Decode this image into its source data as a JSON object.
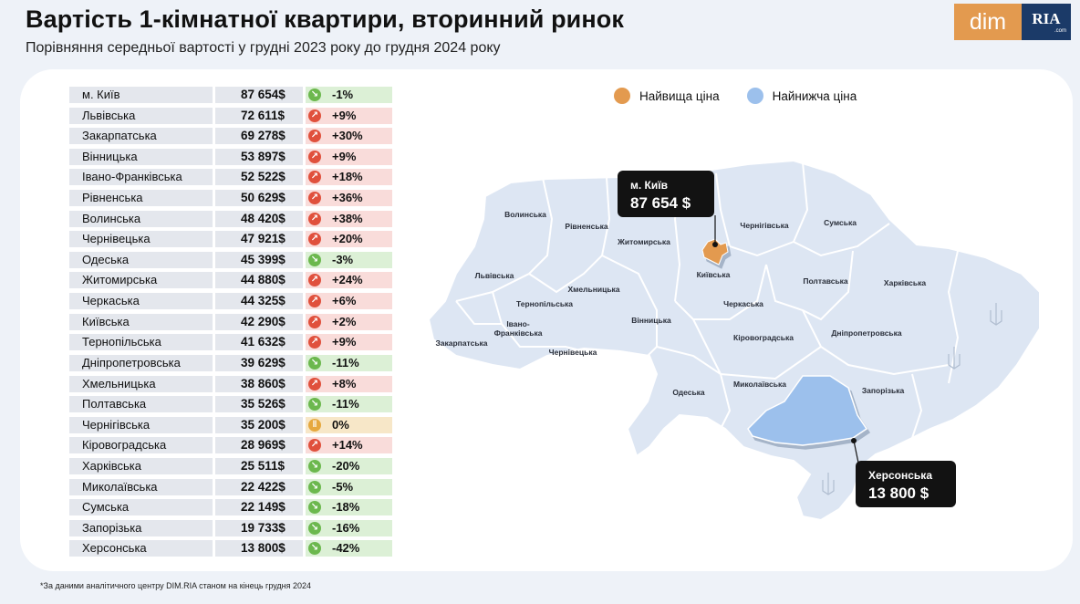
{
  "header": {
    "title": "Вартість 1-кімнатної квартири, вторинний ринок",
    "subtitle": "Порівняння середньої вартості у грудні 2023 року до грудня 2024 року"
  },
  "logo": {
    "dim": "dim",
    "ria": "RIA",
    "ria_suffix": ".com"
  },
  "legend": {
    "highest": {
      "label": "Найвища ціна",
      "color": "#e39a4f"
    },
    "lowest": {
      "label": "Найнижча ціна",
      "color": "#9cc0ec"
    }
  },
  "chart_data": {
    "type": "table",
    "columns": [
      "region",
      "value",
      "change"
    ],
    "rows": [
      {
        "region": "м. Київ",
        "value": "87 654$",
        "change": "-1%",
        "direction": "down"
      },
      {
        "region": "Львівська",
        "value": "72 611$",
        "change": "+9%",
        "direction": "up"
      },
      {
        "region": "Закарпатська",
        "value": "69 278$",
        "change": "+30%",
        "direction": "up"
      },
      {
        "region": "Вінницька",
        "value": "53 897$",
        "change": "+9%",
        "direction": "up"
      },
      {
        "region": "Івано-Франківська",
        "value": "52 522$",
        "change": "+18%",
        "direction": "up"
      },
      {
        "region": "Рівненська",
        "value": "50 629$",
        "change": "+36%",
        "direction": "up"
      },
      {
        "region": "Волинська",
        "value": "48 420$",
        "change": "+38%",
        "direction": "up"
      },
      {
        "region": "Чернівецька",
        "value": "47 921$",
        "change": "+20%",
        "direction": "up"
      },
      {
        "region": "Одеська",
        "value": "45 399$",
        "change": "-3%",
        "direction": "down"
      },
      {
        "region": "Житомирська",
        "value": "44 880$",
        "change": "+24%",
        "direction": "up"
      },
      {
        "region": "Черкаська",
        "value": "44 325$",
        "change": "+6%",
        "direction": "up"
      },
      {
        "region": "Київська",
        "value": "42 290$",
        "change": "+2%",
        "direction": "up"
      },
      {
        "region": "Тернопільська",
        "value": "41 632$",
        "change": "+9%",
        "direction": "up"
      },
      {
        "region": "Дніпропетровська",
        "value": "39 629$",
        "change": "-11%",
        "direction": "down"
      },
      {
        "region": "Хмельницька",
        "value": "38 860$",
        "change": "+8%",
        "direction": "up"
      },
      {
        "region": "Полтавська",
        "value": "35 526$",
        "change": "-11%",
        "direction": "down"
      },
      {
        "region": "Чернігівська",
        "value": "35 200$",
        "change": "0%",
        "direction": "flat"
      },
      {
        "region": "Кіровоградська",
        "value": "28 969$",
        "change": "+14%",
        "direction": "up"
      },
      {
        "region": "Харківська",
        "value": "25 511$",
        "change": "-20%",
        "direction": "down"
      },
      {
        "region": "Миколаївська",
        "value": "22 422$",
        "change": "-5%",
        "direction": "down"
      },
      {
        "region": "Сумська",
        "value": "22 149$",
        "change": "-18%",
        "direction": "down"
      },
      {
        "region": "Запорізька",
        "value": "19 733$",
        "change": "-16%",
        "direction": "down"
      },
      {
        "region": "Херсонська",
        "value": "13 800$",
        "change": "-42%",
        "direction": "down"
      }
    ]
  },
  "map": {
    "labels": {
      "volyn": "Волинська",
      "rivne": "Рівненська",
      "zhytomyr": "Житомирська",
      "chernihiv": "Чернігівська",
      "sumy": "Сумська",
      "lviv": "Львівська",
      "khmelnytskyi": "Хмельницька",
      "ternopil": "Тернопільська",
      "kyivska": "Київська",
      "poltava": "Полтавська",
      "kharkiv": "Харківська",
      "cherkasy": "Черкаська",
      "zakarpattia": "Закарпатська",
      "ivano1": "Івано-",
      "ivano2": "Франківська",
      "chernivtsi": "Чернівецька",
      "vinnytsia": "Вінницька",
      "kirovohrad": "Кіровоградська",
      "dnipro": "Дніпропетровська",
      "odesa": "Одеська",
      "mykolaiv": "Миколаївська",
      "zaporizhzhia": "Запорізька"
    },
    "colors": {
      "base": "#dde6f3",
      "highlight_high": "#e39a4f",
      "highlight_low": "#9cc0ec",
      "border": "#ffffff"
    },
    "callout_high": {
      "name": "м. Київ",
      "value": "87 654 $"
    },
    "callout_low": {
      "name": "Херсонська",
      "value": "13 800 $"
    }
  },
  "footnote": "*За даними аналітичного центру DIM.RIA станом на кінець грудня 2024"
}
